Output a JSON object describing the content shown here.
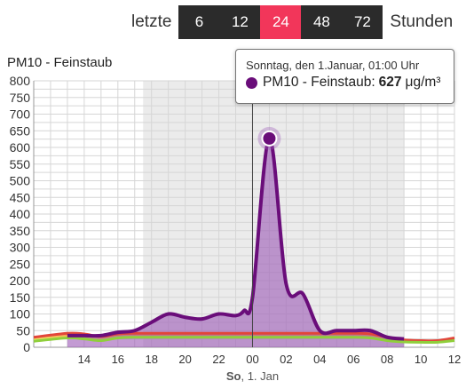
{
  "header": {
    "prefix": "letzte",
    "suffix": "Stunden",
    "options": [
      "6",
      "12",
      "24",
      "48",
      "72"
    ],
    "active_option": "24"
  },
  "tooltip": {
    "date": "Sonntag, den 1.Januar, 01:00 Uhr",
    "series_label": "PM10 - Feinstaub:",
    "value": "627",
    "unit": "μg/m³"
  },
  "colors": {
    "series": "#6a0d7a",
    "fill": "#9b59b6",
    "active": "#f2365a",
    "night_band": "#ebebeb"
  },
  "chart_data": {
    "type": "area",
    "title": "PM10 - Feinstaub",
    "ylim": [
      0,
      800
    ],
    "y_ticks": [
      "0",
      "50",
      "100",
      "150",
      "200",
      "250",
      "300",
      "350",
      "400",
      "450",
      "500",
      "550",
      "600",
      "650",
      "700",
      "750",
      "800"
    ],
    "x_ticks": [
      {
        "label": "14",
        "hour": 14
      },
      {
        "label": "16",
        "hour": 16
      },
      {
        "label": "18",
        "hour": 18
      },
      {
        "label": "20",
        "hour": 20
      },
      {
        "label": "22",
        "hour": 22
      },
      {
        "label": "00",
        "hour": 24
      },
      {
        "label": "02",
        "hour": 26
      },
      {
        "label": "04",
        "hour": 28
      },
      {
        "label": "06",
        "hour": 30
      },
      {
        "label": "08",
        "hour": 32
      },
      {
        "label": "10",
        "hour": 34
      },
      {
        "label": "12",
        "hour": 36
      }
    ],
    "date_label": {
      "day": "So",
      "date": ", 1. Jan",
      "hour": 24
    },
    "night_band": [
      17.5,
      33
    ],
    "grid": true,
    "x_hours": [
      13,
      14,
      15,
      16,
      17,
      18,
      19,
      20,
      21,
      22,
      23,
      23.5,
      24,
      25,
      26,
      27,
      28,
      29,
      30,
      31,
      32,
      33
    ],
    "values": [
      35,
      35,
      35,
      45,
      50,
      75,
      100,
      90,
      85,
      100,
      95,
      110,
      150,
      627,
      190,
      160,
      50,
      50,
      50,
      50,
      30,
      25
    ],
    "threshold_lines": [
      {
        "name": "red",
        "x_hours": [
          11,
          13,
          14,
          15,
          16,
          17,
          18,
          20,
          22,
          24,
          26,
          28,
          30,
          31,
          32,
          33,
          34,
          35,
          36
        ],
        "values": [
          30,
          42,
          40,
          32,
          40,
          42,
          42,
          42,
          42,
          42,
          42,
          42,
          42,
          40,
          30,
          22,
          20,
          20,
          28
        ],
        "color": "#e2453a"
      },
      {
        "name": "green",
        "x_hours": [
          11,
          13,
          14,
          15,
          16,
          17,
          18,
          20,
          22,
          24,
          26,
          28,
          30,
          31,
          32,
          33,
          34,
          35,
          36
        ],
        "values": [
          18,
          28,
          25,
          20,
          28,
          30,
          30,
          30,
          30,
          30,
          30,
          30,
          30,
          28,
          20,
          16,
          15,
          15,
          20
        ],
        "color": "#8fcf3b"
      }
    ],
    "highlight": {
      "hour": 25,
      "value": 627
    }
  }
}
